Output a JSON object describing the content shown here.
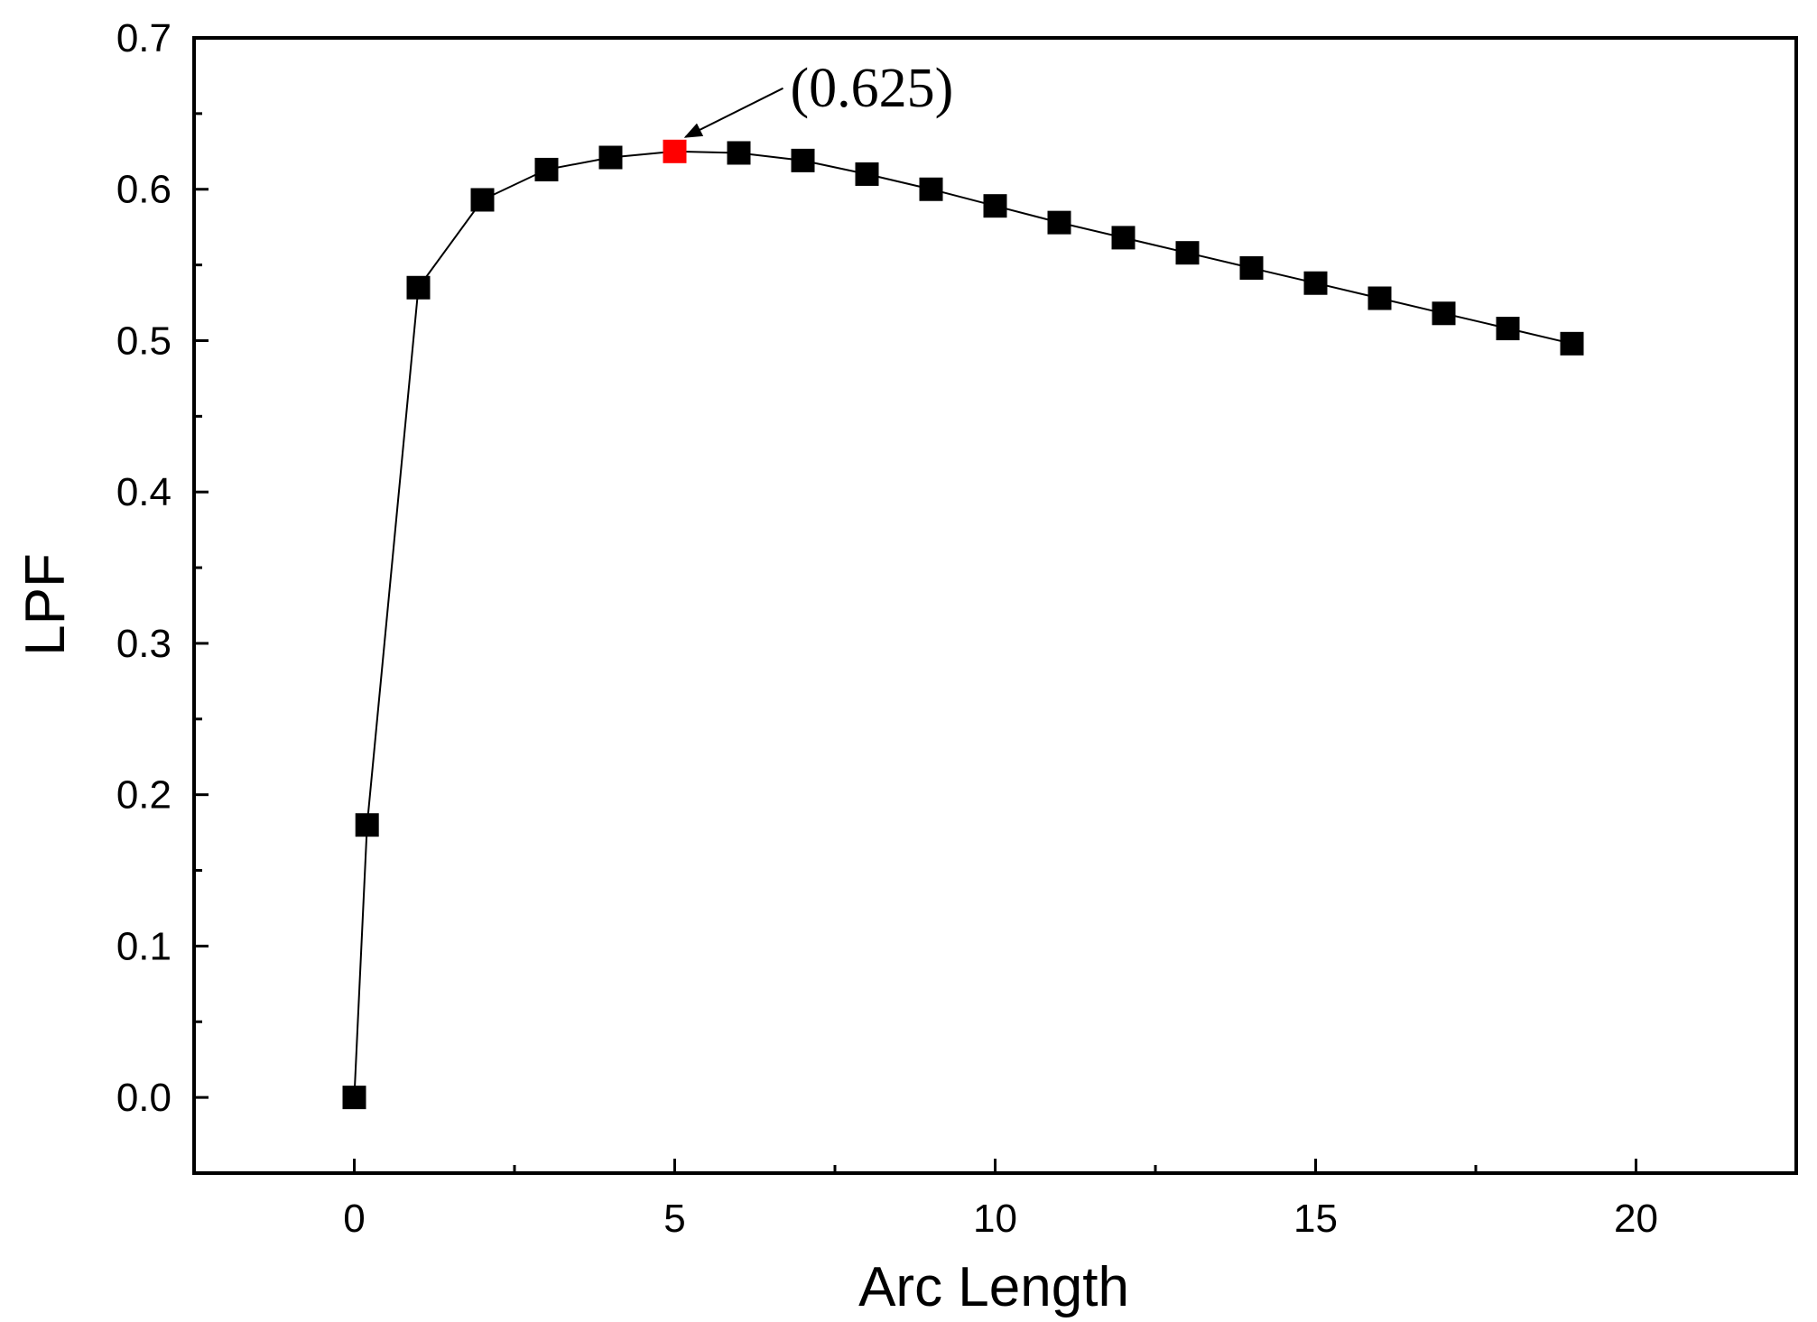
{
  "chart_data": {
    "type": "scatter",
    "xlabel": "Arc Length",
    "ylabel": "LPF",
    "xlim": [
      -2.5,
      22.5
    ],
    "ylim": [
      -0.05,
      0.7
    ],
    "x_ticks": [
      0,
      5,
      10,
      15,
      20
    ],
    "x_tick_labels": [
      "0",
      "5",
      "10",
      "15",
      "20"
    ],
    "y_ticks": [
      0.0,
      0.1,
      0.2,
      0.3,
      0.4,
      0.5,
      0.6,
      0.7
    ],
    "y_tick_labels": [
      "0.0",
      "0.1",
      "0.2",
      "0.3",
      "0.4",
      "0.5",
      "0.6",
      "0.7"
    ],
    "grid": false,
    "series": [
      {
        "marker": "square",
        "color": "#000000",
        "connected": true,
        "x": [
          0,
          0.2,
          1,
          2,
          3,
          4,
          5,
          6,
          7,
          8,
          9,
          10,
          11,
          12,
          13,
          14,
          15,
          16,
          17,
          18,
          19
        ],
        "y": [
          0.0,
          0.18,
          0.535,
          0.593,
          0.613,
          0.621,
          0.625,
          0.624,
          0.619,
          0.61,
          0.6,
          0.589,
          0.578,
          0.568,
          0.558,
          0.548,
          0.538,
          0.528,
          0.518,
          0.508,
          0.498
        ]
      }
    ],
    "highlight": {
      "x": 5,
      "y": 0.625,
      "color": "#ff0000"
    },
    "annotation": {
      "text": "(0.625)",
      "x": 5,
      "y": 0.625
    }
  }
}
